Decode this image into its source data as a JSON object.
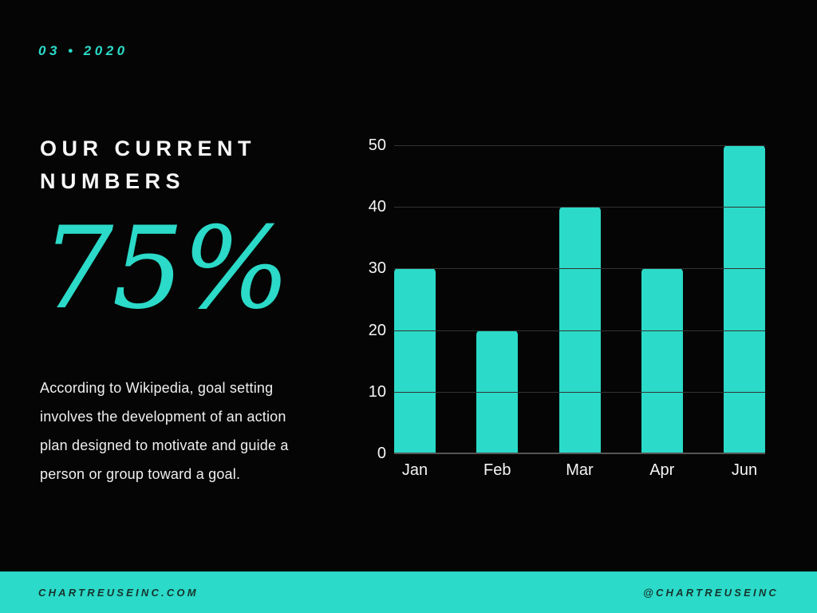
{
  "colors": {
    "teal": "#2bdac8",
    "background": "#050505",
    "text_white": "#f7f7f7",
    "footer_text": "#16342f",
    "gridline": "#333333",
    "axis_line": "#555555"
  },
  "header": {
    "date_label": "03 • 2020"
  },
  "left_panel": {
    "title": "OUR CURRENT NUMBERS",
    "big_number": "75%",
    "paragraph": "According to Wikipedia, goal setting involves the development of an action plan designed to motivate and guide a person or group toward a goal."
  },
  "chart_data": {
    "type": "bar",
    "categories": [
      "Jan",
      "Feb",
      "Mar",
      "Apr",
      "Jun"
    ],
    "values": [
      30,
      20,
      40,
      30,
      50
    ],
    "title": "",
    "xlabel": "",
    "ylabel": "",
    "ylim": [
      0,
      50
    ],
    "yticks": [
      0,
      10,
      20,
      30,
      40,
      50
    ],
    "grid": true,
    "legend": "none",
    "bar_color": "#2bdac8"
  },
  "footer": {
    "left": "CHARTREUSEINC.COM",
    "right": "@CHARTREUSEINC"
  }
}
